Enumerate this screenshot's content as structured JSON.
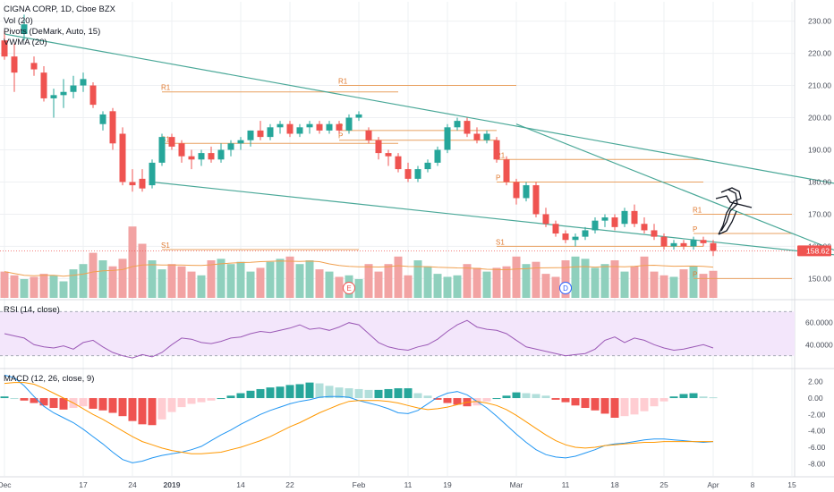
{
  "chart_data": [
    {
      "type": "candlestick",
      "title": "CIGNA CORP, 1D, Cboe BZX",
      "legend": [
        "Vol (20)",
        "Pivots (DeMark, Auto, 15)",
        "VWMA (20)"
      ],
      "ylim": [
        144,
        236
      ],
      "y_ticks": [
        "150.00",
        "160.00",
        "170.00",
        "180.00",
        "190.00",
        "200.00",
        "210.00",
        "220.00",
        "230.00"
      ],
      "last_price": "158.62",
      "x_ticks": [
        "Dec",
        "17",
        "24",
        "2019",
        "14",
        "22",
        "Feb",
        "11",
        "19",
        "Mar",
        "11",
        "18",
        "25",
        "Apr",
        "8",
        "15"
      ],
      "candles": [
        {
          "o": 224.0,
          "h": 227.0,
          "l": 218.0,
          "c": 219.0
        },
        {
          "o": 219.0,
          "h": 223.0,
          "l": 208.0,
          "c": 214.0
        },
        {
          "o": 226.0,
          "h": 232.0,
          "l": 224.0,
          "c": 229.0
        },
        {
          "o": 217.0,
          "h": 219.0,
          "l": 213.0,
          "c": 215.0
        },
        {
          "o": 214.0,
          "h": 216.0,
          "l": 205.0,
          "c": 206.0
        },
        {
          "o": 206.0,
          "h": 209.0,
          "l": 200.0,
          "c": 207.0
        },
        {
          "o": 207.0,
          "h": 212.0,
          "l": 203.0,
          "c": 208.0
        },
        {
          "o": 208.0,
          "h": 213.0,
          "l": 206.0,
          "c": 210.0
        },
        {
          "o": 210.0,
          "h": 214.0,
          "l": 208.0,
          "c": 212.0
        },
        {
          "o": 210.0,
          "h": 211.0,
          "l": 203.0,
          "c": 204.0
        },
        {
          "o": 198.0,
          "h": 202.0,
          "l": 196.0,
          "c": 201.0
        },
        {
          "o": 202.0,
          "h": 203.0,
          "l": 190.0,
          "c": 192.0
        },
        {
          "o": 195.0,
          "h": 197.0,
          "l": 179.0,
          "c": 180.0
        },
        {
          "o": 180.0,
          "h": 184.0,
          "l": 177.0,
          "c": 179.0
        },
        {
          "o": 181.0,
          "h": 184.0,
          "l": 177.0,
          "c": 178.0
        },
        {
          "o": 179.0,
          "h": 187.0,
          "l": 178.0,
          "c": 186.0
        },
        {
          "o": 186.0,
          "h": 195.0,
          "l": 185.0,
          "c": 194.0
        },
        {
          "o": 194.0,
          "h": 195.0,
          "l": 190.0,
          "c": 191.0
        },
        {
          "o": 192.0,
          "h": 193.0,
          "l": 186.0,
          "c": 188.0
        },
        {
          "o": 188.0,
          "h": 190.0,
          "l": 184.0,
          "c": 187.0
        },
        {
          "o": 187.0,
          "h": 190.0,
          "l": 185.0,
          "c": 189.0
        },
        {
          "o": 189.0,
          "h": 191.0,
          "l": 186.0,
          "c": 187.0
        },
        {
          "o": 187.0,
          "h": 192.0,
          "l": 186.0,
          "c": 190.0
        },
        {
          "o": 190.0,
          "h": 193.0,
          "l": 188.0,
          "c": 192.0
        },
        {
          "o": 192.0,
          "h": 194.0,
          "l": 190.0,
          "c": 193.0
        },
        {
          "o": 193.0,
          "h": 196.0,
          "l": 191.0,
          "c": 196.0
        },
        {
          "o": 196.0,
          "h": 199.0,
          "l": 193.0,
          "c": 194.0
        },
        {
          "o": 194.0,
          "h": 198.0,
          "l": 193.0,
          "c": 197.0
        },
        {
          "o": 197.0,
          "h": 199.0,
          "l": 195.0,
          "c": 198.0
        },
        {
          "o": 198.0,
          "h": 199.0,
          "l": 194.0,
          "c": 195.0
        },
        {
          "o": 195.0,
          "h": 198.0,
          "l": 194.0,
          "c": 197.0
        },
        {
          "o": 197.0,
          "h": 199.0,
          "l": 195.0,
          "c": 198.0
        },
        {
          "o": 198.0,
          "h": 199.0,
          "l": 195.0,
          "c": 196.0
        },
        {
          "o": 196.0,
          "h": 199.0,
          "l": 195.0,
          "c": 198.0
        },
        {
          "o": 198.0,
          "h": 199.0,
          "l": 195.0,
          "c": 196.0
        },
        {
          "o": 196.0,
          "h": 201.0,
          "l": 195.0,
          "c": 200.0
        },
        {
          "o": 200.0,
          "h": 202.0,
          "l": 199.0,
          "c": 201.0
        },
        {
          "o": 196.0,
          "h": 197.0,
          "l": 192.0,
          "c": 193.0
        },
        {
          "o": 193.0,
          "h": 194.0,
          "l": 187.0,
          "c": 189.0
        },
        {
          "o": 189.0,
          "h": 190.0,
          "l": 185.0,
          "c": 188.0
        },
        {
          "o": 188.0,
          "h": 189.0,
          "l": 183.0,
          "c": 184.0
        },
        {
          "o": 184.0,
          "h": 186.0,
          "l": 180.0,
          "c": 181.0
        },
        {
          "o": 181.0,
          "h": 185.0,
          "l": 180.0,
          "c": 184.0
        },
        {
          "o": 184.0,
          "h": 187.0,
          "l": 183.0,
          "c": 186.0
        },
        {
          "o": 186.0,
          "h": 191.0,
          "l": 185.0,
          "c": 190.0
        },
        {
          "o": 190.0,
          "h": 198.0,
          "l": 189.0,
          "c": 197.0
        },
        {
          "o": 197.0,
          "h": 200.0,
          "l": 196.0,
          "c": 199.0
        },
        {
          "o": 199.0,
          "h": 200.0,
          "l": 194.0,
          "c": 195.0
        },
        {
          "o": 195.0,
          "h": 197.0,
          "l": 192.0,
          "c": 193.0
        },
        {
          "o": 193.0,
          "h": 196.0,
          "l": 192.0,
          "c": 195.0
        },
        {
          "o": 193.0,
          "h": 194.0,
          "l": 186.0,
          "c": 187.0
        },
        {
          "o": 187.0,
          "h": 188.0,
          "l": 179.0,
          "c": 180.0
        },
        {
          "o": 180.0,
          "h": 181.0,
          "l": 173.0,
          "c": 175.0
        },
        {
          "o": 175.0,
          "h": 180.0,
          "l": 174.0,
          "c": 179.0
        },
        {
          "o": 179.0,
          "h": 180.0,
          "l": 169.0,
          "c": 170.0
        },
        {
          "o": 170.0,
          "h": 172.0,
          "l": 166.0,
          "c": 167.0
        },
        {
          "o": 167.0,
          "h": 168.0,
          "l": 163.0,
          "c": 164.0
        },
        {
          "o": 164.0,
          "h": 165.0,
          "l": 161.0,
          "c": 162.0
        },
        {
          "o": 162.0,
          "h": 164.0,
          "l": 160.0,
          "c": 163.0
        },
        {
          "o": 163.0,
          "h": 166.0,
          "l": 162.0,
          "c": 165.0
        },
        {
          "o": 165.0,
          "h": 169.0,
          "l": 164.0,
          "c": 168.0
        },
        {
          "o": 168.0,
          "h": 170.0,
          "l": 166.0,
          "c": 169.0
        },
        {
          "o": 169.0,
          "h": 170.0,
          "l": 165.0,
          "c": 166.0
        },
        {
          "o": 167.0,
          "h": 172.0,
          "l": 166.0,
          "c": 171.0
        },
        {
          "o": 171.0,
          "h": 173.0,
          "l": 166.0,
          "c": 167.0
        },
        {
          "o": 167.0,
          "h": 169.0,
          "l": 164.0,
          "c": 165.0
        },
        {
          "o": 165.0,
          "h": 167.0,
          "l": 162.0,
          "c": 163.0
        },
        {
          "o": 163.0,
          "h": 164.0,
          "l": 159.0,
          "c": 160.0
        },
        {
          "o": 160.0,
          "h": 162.0,
          "l": 159.0,
          "c": 161.0
        },
        {
          "o": 161.0,
          "h": 162.0,
          "l": 159.0,
          "c": 160.0
        },
        {
          "o": 160.0,
          "h": 163.0,
          "l": 159.0,
          "c": 162.0
        },
        {
          "o": 162.0,
          "h": 163.0,
          "l": 160.0,
          "c": 161.0
        },
        {
          "o": 161.0,
          "h": 162.0,
          "l": 157.0,
          "c": 158.6
        }
      ],
      "volume": [
        0.35,
        0.3,
        0.25,
        0.28,
        0.32,
        0.3,
        0.22,
        0.38,
        0.45,
        0.6,
        0.5,
        0.42,
        0.52,
        0.95,
        0.72,
        0.5,
        0.38,
        0.45,
        0.42,
        0.35,
        0.3,
        0.5,
        0.52,
        0.45,
        0.48,
        0.35,
        0.4,
        0.48,
        0.52,
        0.55,
        0.45,
        0.5,
        0.38,
        0.35,
        0.28,
        0.3,
        0.25,
        0.45,
        0.35,
        0.45,
        0.55,
        0.3,
        0.5,
        0.42,
        0.32,
        0.28,
        0.3,
        0.45,
        0.4,
        0.35,
        0.4,
        0.42,
        0.55,
        0.45,
        0.48,
        0.32,
        0.28,
        0.5,
        0.55,
        0.52,
        0.4,
        0.45,
        0.5,
        0.35,
        0.42,
        0.55,
        0.35,
        0.3,
        0.28,
        0.38,
        0.42,
        0.32,
        0.36
      ],
      "pivots": [
        {
          "label": "R1",
          "value": 208.0
        },
        {
          "label": "R1",
          "value": 210.0
        },
        {
          "label": "P",
          "value": 196.0
        },
        {
          "label": "S1",
          "value": 192.0
        },
        {
          "label": "P",
          "value": 193.0
        },
        {
          "label": "R1",
          "value": 187.0
        },
        {
          "label": "P",
          "value": 180.0
        },
        {
          "label": "R1",
          "value": 170.0
        },
        {
          "label": "P",
          "value": 164.0
        },
        {
          "label": "S1",
          "value": 160.0
        },
        {
          "label": "S1",
          "value": 159.0
        },
        {
          "label": "P",
          "value": 150.0
        }
      ],
      "trendlines": [
        {
          "from": [
            0,
            226.0
          ],
          "to": [
            89,
            177.0
          ]
        },
        {
          "from": [
            15,
            180.0
          ],
          "to": [
            87,
            156.5
          ]
        },
        {
          "from": [
            52,
            198.0
          ],
          "to": [
            85,
            158.0
          ]
        }
      ],
      "events": [
        "E",
        "D"
      ]
    },
    {
      "type": "line",
      "title": "RSI (14, close)",
      "ylim": [
        20,
        80
      ],
      "y_ticks": [
        "60.0000",
        "40.0000"
      ],
      "bands": [
        70,
        30
      ],
      "values": [
        50,
        48,
        46,
        40,
        38,
        37,
        39,
        36,
        42,
        44,
        38,
        33,
        30,
        28,
        31,
        29,
        33,
        40,
        46,
        45,
        42,
        41,
        43,
        46,
        47,
        50,
        52,
        51,
        53,
        55,
        58,
        54,
        55,
        53,
        56,
        60,
        58,
        50,
        42,
        38,
        36,
        35,
        38,
        40,
        45,
        52,
        58,
        62,
        56,
        54,
        53,
        50,
        44,
        38,
        36,
        34,
        32,
        30,
        31,
        32,
        36,
        44,
        47,
        42,
        46,
        44,
        40,
        37,
        35,
        36,
        38,
        40,
        37
      ]
    },
    {
      "type": "bar+line",
      "title": "MACD (12, 26, close, 9)",
      "ylim": [
        -9.5,
        3.5
      ],
      "y_ticks": [
        "2.00",
        "0.00",
        "-2.00",
        "-4.00",
        "-6.00",
        "-8.00"
      ],
      "histogram": [
        0.2,
        0.0,
        -0.3,
        -0.6,
        -0.9,
        -1.2,
        -1.4,
        -1.2,
        -1.0,
        -1.3,
        -1.5,
        -1.8,
        -2.2,
        -2.8,
        -3.2,
        -3.3,
        -2.6,
        -1.7,
        -1.1,
        -0.7,
        -0.5,
        -0.3,
        0.0,
        0.3,
        0.6,
        0.9,
        1.1,
        1.3,
        1.4,
        1.6,
        1.7,
        1.9,
        1.8,
        1.5,
        1.3,
        1.2,
        1.1,
        1.0,
        1.0,
        1.1,
        1.2,
        1.2,
        0.6,
        0.3,
        -0.2,
        -0.6,
        -0.8,
        -1.0,
        -0.9,
        -0.4,
        0.0,
        0.3,
        0.7,
        0.6,
        0.5,
        0.3,
        -0.2,
        -0.5,
        -0.9,
        -1.2,
        -1.5,
        -1.9,
        -2.4,
        -2.2,
        -2.0,
        -1.6,
        -1.0,
        -0.4,
        0.2,
        0.5,
        0.6,
        0.2,
        0.1
      ],
      "macd": [
        2.8,
        2.5,
        1.5,
        0.2,
        -1.0,
        -1.8,
        -2.4,
        -3.0,
        -3.8,
        -4.7,
        -5.6,
        -6.6,
        -7.5,
        -7.9,
        -7.7,
        -7.3,
        -7.0,
        -6.8,
        -6.6,
        -6.3,
        -5.9,
        -5.2,
        -4.5,
        -3.9,
        -3.2,
        -2.6,
        -2.0,
        -1.5,
        -1.1,
        -0.7,
        -0.4,
        -0.2,
        0.1,
        0.2,
        0.2,
        0.1,
        -0.3,
        -0.6,
        -0.9,
        -1.3,
        -1.8,
        -1.9,
        -1.5,
        -0.7,
        0.1,
        0.6,
        0.8,
        0.4,
        -0.4,
        -1.2,
        -2.2,
        -3.3,
        -4.4,
        -5.4,
        -6.3,
        -6.9,
        -7.2,
        -7.3,
        -7.1,
        -6.7,
        -6.3,
        -5.8,
        -5.6,
        -5.5,
        -5.3,
        -5.1,
        -5.0,
        -5.0,
        -5.1,
        -5.2,
        -5.3,
        -5.4,
        -5.3
      ],
      "signal": [
        1.8,
        1.9,
        1.9,
        1.7,
        1.2,
        0.6,
        0.0,
        -0.6,
        -1.3,
        -2.0,
        -2.6,
        -3.3,
        -4.0,
        -4.7,
        -5.3,
        -5.7,
        -6.1,
        -6.4,
        -6.6,
        -6.8,
        -6.8,
        -6.7,
        -6.6,
        -6.3,
        -6.0,
        -5.6,
        -5.2,
        -4.7,
        -4.1,
        -3.5,
        -3.0,
        -2.4,
        -1.8,
        -1.3,
        -0.8,
        -0.4,
        -0.3,
        -0.3,
        -0.3,
        -0.4,
        -0.6,
        -0.9,
        -1.2,
        -1.4,
        -1.3,
        -1.1,
        -0.8,
        -0.5,
        -0.4,
        -0.6,
        -0.9,
        -1.4,
        -2.1,
        -2.9,
        -3.7,
        -4.5,
        -5.2,
        -5.7,
        -6.0,
        -6.1,
        -6.0,
        -5.8,
        -5.7,
        -5.6,
        -5.5,
        -5.4,
        -5.4,
        -5.3,
        -5.3,
        -5.3,
        -5.3,
        -5.3,
        -5.3
      ]
    }
  ]
}
